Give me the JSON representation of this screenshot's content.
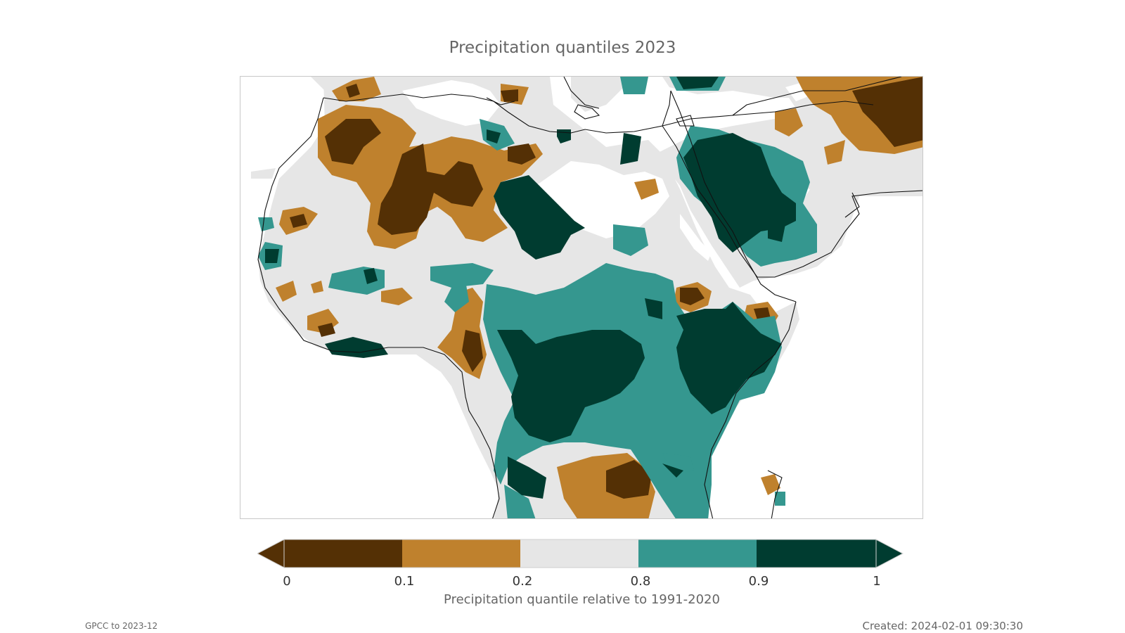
{
  "title": "Precipitation quantiles 2023",
  "colorbar": {
    "label": "Precipitation quantile relative to 1991-2020",
    "ticks": [
      "0",
      "0.1",
      "0.2",
      "0.8",
      "0.9",
      "1"
    ],
    "bins": [
      {
        "range": "0-0.1",
        "color": "#543005"
      },
      {
        "range": "0.1-0.2",
        "color": "#bf812d"
      },
      {
        "range": "0.2-0.8",
        "color": "#e6e6e6"
      },
      {
        "range": "0.8-0.9",
        "color": "#35978f"
      },
      {
        "range": "0.9-1",
        "color": "#003c30"
      }
    ]
  },
  "footer": {
    "source": "GPCC to 2023-12",
    "created": "Created: 2024-02-01 09:30:30"
  }
}
